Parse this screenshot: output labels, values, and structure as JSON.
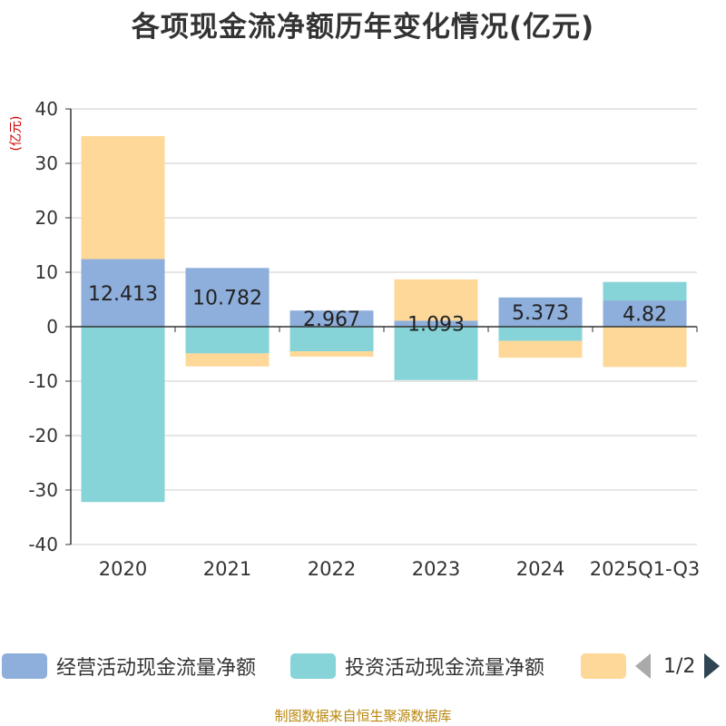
{
  "chart_data": {
    "type": "bar",
    "stacked": true,
    "title": "各项现金流净额历年变化情况(亿元)",
    "ylabel": "(亿元)",
    "xlabel": "",
    "ylim": [
      -40,
      40
    ],
    "yticks": [
      -40,
      -30,
      -20,
      -10,
      0,
      10,
      20,
      30,
      40
    ],
    "grid": true,
    "categories": [
      "2020",
      "2021",
      "2022",
      "2023",
      "2024",
      "2025Q1-Q3"
    ],
    "series": [
      {
        "name": "经营活动现金流量净额",
        "color": "#8eaedb",
        "values": [
          12.413,
          10.782,
          2.967,
          1.093,
          5.373,
          4.82
        ],
        "labels": [
          "12.413",
          "10.782",
          "2.967",
          "1.093",
          "5.373",
          "4.82"
        ]
      },
      {
        "name": "投资活动现金流量净额",
        "color": "#86d4d8",
        "values": [
          -32.2,
          -4.9,
          -4.5,
          -9.8,
          -2.6,
          3.4
        ]
      },
      {
        "name": "",
        "color": "#fdd898",
        "values": [
          22.6,
          -2.4,
          -1.0,
          7.6,
          -3.1,
          -7.4
        ]
      }
    ]
  },
  "legend": {
    "items": [
      {
        "label": "经营活动现金流量净额",
        "color": "#8eaedb"
      },
      {
        "label": "投资活动现金流量净额",
        "color": "#86d4d8"
      },
      {
        "label": "",
        "color": "#fdd898"
      }
    ],
    "page_indicator": "1/2"
  },
  "footer": {
    "source": "制图数据来自恒生聚源数据库"
  }
}
